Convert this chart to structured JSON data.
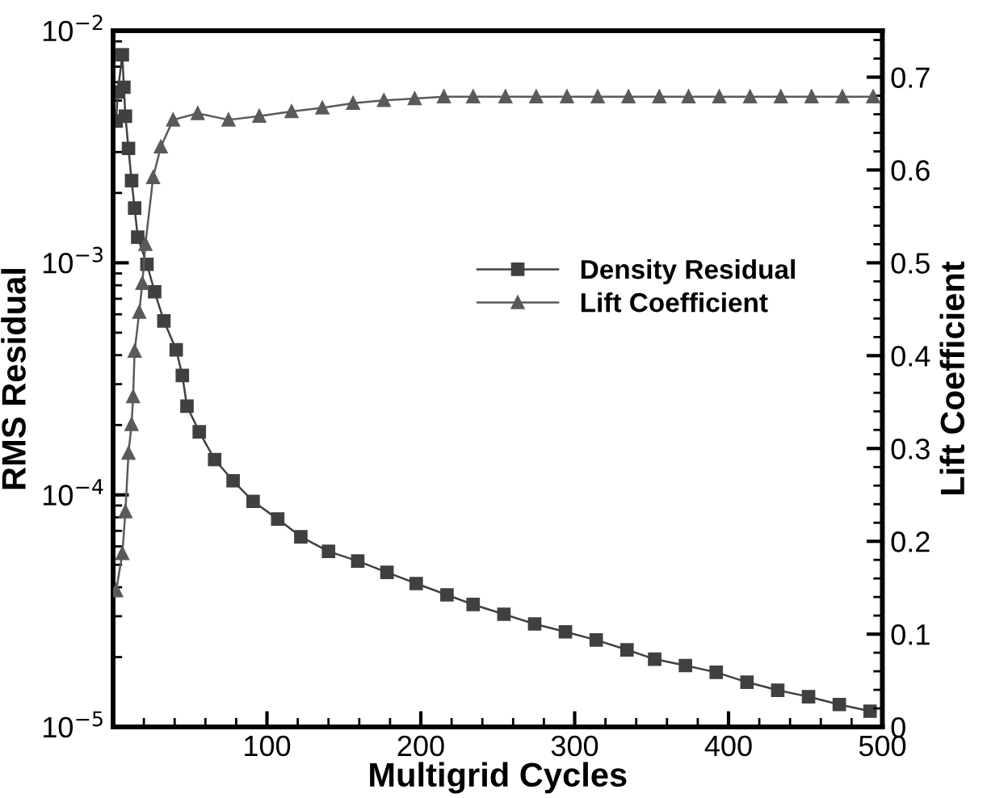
{
  "chart_data": {
    "type": "line",
    "xlabel": "Multigrid Cycles",
    "ylabel": "RMS Residual",
    "y2label": "Lift Coefficient",
    "xlim": [
      0,
      500
    ],
    "xticks": [
      100,
      200,
      300,
      400,
      500
    ],
    "ylim": [
      1e-05,
      0.01
    ],
    "yticks": [
      {
        "value": 1e-05,
        "label": "10$^{−5}$"
      },
      {
        "value": 0.0001,
        "label": "10$^{−4}$"
      },
      {
        "value": 0.001,
        "label": "10$^{−3}$"
      },
      {
        "value": 0.01,
        "label": "10$^{−2}$"
      }
    ],
    "y2lim": [
      0,
      0.75
    ],
    "y2ticks": [
      0,
      0.1,
      0.2,
      0.3,
      0.4,
      0.5,
      0.6,
      0.7
    ],
    "log": "y",
    "grid": false,
    "legend": "right",
    "line_style": "solid",
    "series": [
      {
        "name": "Density Residual",
        "color": "#404040",
        "marker": "square",
        "x": [
          2,
          3,
          6,
          7,
          8,
          10,
          12,
          14,
          16,
          22,
          27,
          33,
          41,
          45,
          48,
          56,
          66,
          78,
          91,
          107,
          122,
          140,
          159,
          178,
          197,
          217,
          234,
          254,
          274,
          294,
          314,
          334,
          352,
          372,
          392,
          412,
          432,
          452,
          472,
          492
        ],
        "values": [
          0.00408,
          0.00544,
          0.00787,
          0.00571,
          0.00428,
          0.00311,
          0.00226,
          0.00172,
          0.00129,
          0.000985,
          0.00075,
          0.000562,
          0.000422,
          0.000327,
          0.000241,
          0.000187,
          0.000142,
          0.000115,
          9.38e-05,
          7.87e-05,
          6.6e-05,
          5.71e-05,
          5.19e-05,
          4.64e-05,
          4.15e-05,
          3.71e-05,
          3.37e-05,
          3.06e-05,
          2.78e-05,
          2.57e-05,
          2.37e-05,
          2.15e-05,
          1.96e-05,
          1.84e-05,
          1.72e-05,
          1.56e-05,
          1.44e-05,
          1.35e-05,
          1.25e-05,
          1.17e-05
        ]
      },
      {
        "name": "Lift Coefficient",
        "color": "#5a5a5a",
        "marker": "triangle",
        "axis": "y2",
        "x": [
          2,
          6,
          8,
          10,
          12,
          13,
          14,
          17,
          19,
          21,
          26,
          31,
          39,
          55,
          75,
          95,
          116,
          136,
          156,
          176,
          196,
          215,
          234,
          255,
          275,
          295,
          315,
          335,
          355,
          374,
          394,
          414,
          434,
          454,
          474,
          494
        ],
        "values": [
          0.147,
          0.187,
          0.232,
          0.295,
          0.326,
          0.356,
          0.405,
          0.447,
          0.478,
          0.52,
          0.592,
          0.625,
          0.654,
          0.661,
          0.654,
          0.658,
          0.663,
          0.667,
          0.672,
          0.675,
          0.677,
          0.679,
          0.679,
          0.679,
          0.679,
          0.679,
          0.679,
          0.679,
          0.679,
          0.679,
          0.679,
          0.679,
          0.679,
          0.679,
          0.679,
          0.679
        ]
      }
    ]
  }
}
